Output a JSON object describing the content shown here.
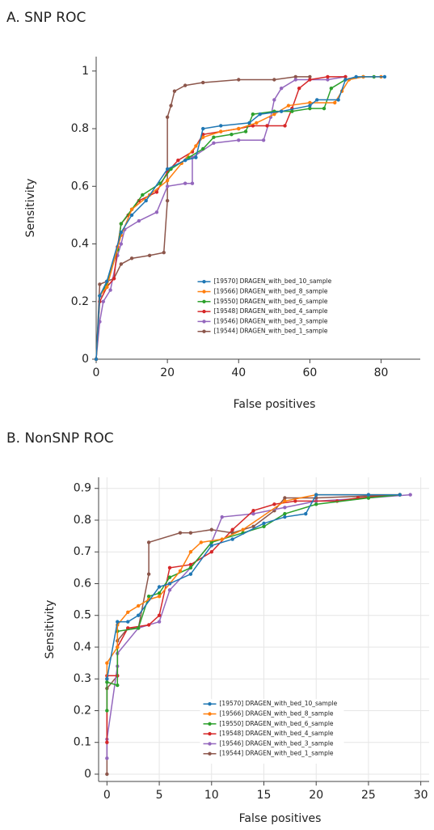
{
  "chart_data": [
    {
      "type": "line",
      "title": "A. SNP ROC",
      "xlabel": "False positives",
      "ylabel": "Sensitivity",
      "xlim": [
        0,
        91
      ],
      "ylim": [
        0,
        1.05
      ],
      "xticks": [
        0,
        20,
        40,
        60,
        80
      ],
      "yticks": [
        0,
        0.2,
        0.4,
        0.6,
        0.8,
        1
      ],
      "grid": false,
      "legend": "lower center",
      "series": [
        {
          "name": "[19570] DRAGEN_with_bed_10_sample",
          "color": "#1f77b4",
          "x": [
            0,
            1,
            3,
            7,
            10,
            14,
            20,
            25,
            28,
            30,
            35,
            43,
            46,
            52,
            60,
            62,
            68,
            70,
            73,
            81
          ],
          "values": [
            0,
            0.22,
            0.27,
            0.44,
            0.5,
            0.55,
            0.66,
            0.69,
            0.7,
            0.8,
            0.81,
            0.82,
            0.85,
            0.86,
            0.88,
            0.9,
            0.9,
            0.97,
            0.98,
            0.98
          ]
        },
        {
          "name": "[19566] DRAGEN_with_bed_8_sample",
          "color": "#ff7f0e",
          "x": [
            0,
            1,
            3,
            7,
            10,
            15,
            20,
            24,
            28,
            30,
            35,
            40,
            45,
            50,
            54,
            60,
            67,
            69,
            71,
            75,
            80
          ],
          "values": [
            0,
            0.22,
            0.25,
            0.43,
            0.52,
            0.57,
            0.62,
            0.68,
            0.74,
            0.77,
            0.79,
            0.8,
            0.82,
            0.85,
            0.88,
            0.89,
            0.89,
            0.93,
            0.97,
            0.98,
            0.98
          ]
        },
        {
          "name": "[19550] DRAGEN_with_bed_6_sample",
          "color": "#2ca02c",
          "x": [
            0,
            1,
            3,
            6,
            7,
            10,
            13,
            18,
            21,
            26,
            30,
            33,
            38,
            42,
            44,
            50,
            55,
            60,
            64,
            66,
            70,
            75,
            78
          ],
          "values": [
            0,
            0.22,
            0.26,
            0.38,
            0.47,
            0.52,
            0.57,
            0.61,
            0.66,
            0.7,
            0.73,
            0.77,
            0.78,
            0.79,
            0.85,
            0.86,
            0.86,
            0.87,
            0.87,
            0.94,
            0.97,
            0.98,
            0.98
          ]
        },
        {
          "name": "[19548] DRAGEN_with_bed_4_sample",
          "color": "#d62728",
          "x": [
            0,
            1,
            3,
            5,
            6,
            7,
            9,
            12,
            17,
            20,
            23,
            27,
            30,
            35,
            40,
            44,
            48,
            53,
            55,
            57,
            60,
            65,
            70
          ],
          "values": [
            0,
            0.2,
            0.25,
            0.28,
            0.39,
            0.47,
            0.5,
            0.55,
            0.58,
            0.65,
            0.69,
            0.72,
            0.78,
            0.79,
            0.8,
            0.81,
            0.81,
            0.81,
            0.87,
            0.94,
            0.97,
            0.98,
            0.98
          ]
        },
        {
          "name": "[19546] DRAGEN_with_bed_3_sample",
          "color": "#9467bd",
          "x": [
            0,
            1,
            2,
            4,
            6,
            7,
            8,
            12,
            17,
            20,
            25,
            27,
            27,
            33,
            40,
            47,
            49,
            50,
            52,
            56,
            60,
            65,
            70
          ],
          "values": [
            0,
            0.13,
            0.2,
            0.24,
            0.36,
            0.4,
            0.45,
            0.48,
            0.51,
            0.6,
            0.61,
            0.61,
            0.7,
            0.75,
            0.76,
            0.76,
            0.84,
            0.9,
            0.94,
            0.97,
            0.97,
            0.97,
            0.98
          ]
        },
        {
          "name": "[19544] DRAGEN_with_bed_1_sample",
          "color": "#8c564b",
          "x": [
            0,
            1,
            3,
            5,
            7,
            10,
            15,
            19,
            20,
            20,
            21,
            22,
            25,
            30,
            40,
            50,
            56,
            60
          ],
          "values": [
            0,
            0.26,
            0.27,
            0.28,
            0.33,
            0.35,
            0.36,
            0.37,
            0.55,
            0.84,
            0.88,
            0.93,
            0.95,
            0.96,
            0.97,
            0.97,
            0.98,
            0.98
          ]
        }
      ]
    },
    {
      "type": "line",
      "title": "B. NonSNP ROC",
      "xlabel": "False positives",
      "ylabel": "Sensitivity",
      "xlim": [
        -0.8,
        30.8
      ],
      "ylim": [
        -0.023,
        0.935
      ],
      "xticks": [
        0,
        5,
        10,
        15,
        20,
        25,
        30
      ],
      "yticks": [
        0,
        0.1,
        0.2,
        0.3,
        0.4,
        0.5,
        0.6,
        0.7,
        0.8,
        0.9
      ],
      "grid": true,
      "legend": "lower center",
      "series": [
        {
          "name": "[19570] DRAGEN_with_bed_10_sample",
          "color": "#1f77b4",
          "x": [
            0,
            1,
            2,
            3,
            5,
            6,
            8,
            10,
            12,
            15,
            17,
            19,
            20,
            25,
            28
          ],
          "values": [
            0.3,
            0.48,
            0.48,
            0.5,
            0.59,
            0.6,
            0.63,
            0.72,
            0.74,
            0.79,
            0.81,
            0.82,
            0.88,
            0.88,
            0.88
          ]
        },
        {
          "name": "[19566] DRAGEN_with_bed_8_sample",
          "color": "#ff7f0e",
          "x": [
            0,
            0,
            1,
            1,
            2,
            3,
            4,
            5,
            6,
            7,
            8,
            9,
            11,
            13,
            17,
            20,
            25,
            28
          ],
          "values": [
            0.3,
            0.35,
            0.4,
            0.47,
            0.51,
            0.53,
            0.55,
            0.56,
            0.6,
            0.64,
            0.7,
            0.73,
            0.74,
            0.77,
            0.86,
            0.88,
            0.88,
            0.88
          ]
        },
        {
          "name": "[19550] DRAGEN_with_bed_6_sample",
          "color": "#2ca02c",
          "x": [
            0,
            0,
            1,
            1,
            3,
            4,
            5,
            6,
            8,
            10,
            13,
            15,
            17,
            20,
            25,
            28
          ],
          "values": [
            0.2,
            0.29,
            0.28,
            0.45,
            0.46,
            0.56,
            0.57,
            0.62,
            0.65,
            0.73,
            0.76,
            0.78,
            0.82,
            0.85,
            0.87,
            0.88
          ]
        },
        {
          "name": "[19548] DRAGEN_with_bed_4_sample",
          "color": "#d62728",
          "x": [
            0,
            0,
            1,
            1,
            2,
            4,
            5,
            6,
            8,
            10,
            12,
            14,
            16,
            18,
            22,
            24,
            28
          ],
          "values": [
            0.1,
            0.31,
            0.31,
            0.4,
            0.46,
            0.47,
            0.5,
            0.65,
            0.66,
            0.7,
            0.77,
            0.83,
            0.85,
            0.86,
            0.86,
            0.87,
            0.88
          ]
        },
        {
          "name": "[19546] DRAGEN_with_bed_3_sample",
          "color": "#9467bd",
          "x": [
            0,
            0,
            1,
            1,
            3,
            5,
            6,
            8,
            10,
            11,
            14,
            17,
            20,
            25,
            29
          ],
          "values": [
            0.05,
            0.11,
            0.34,
            0.38,
            0.46,
            0.48,
            0.58,
            0.65,
            0.73,
            0.81,
            0.82,
            0.84,
            0.86,
            0.87,
            0.88
          ]
        },
        {
          "name": "[19544] DRAGEN_with_bed_1_sample",
          "color": "#8c564b",
          "x": [
            0,
            0,
            1,
            1,
            2,
            3,
            4,
            4,
            7,
            8,
            10,
            12,
            14,
            16,
            17,
            20,
            28
          ],
          "values": [
            0,
            0.27,
            0.31,
            0.42,
            0.46,
            0.46,
            0.63,
            0.73,
            0.76,
            0.76,
            0.77,
            0.76,
            0.78,
            0.83,
            0.87,
            0.87,
            0.88
          ]
        }
      ]
    }
  ]
}
